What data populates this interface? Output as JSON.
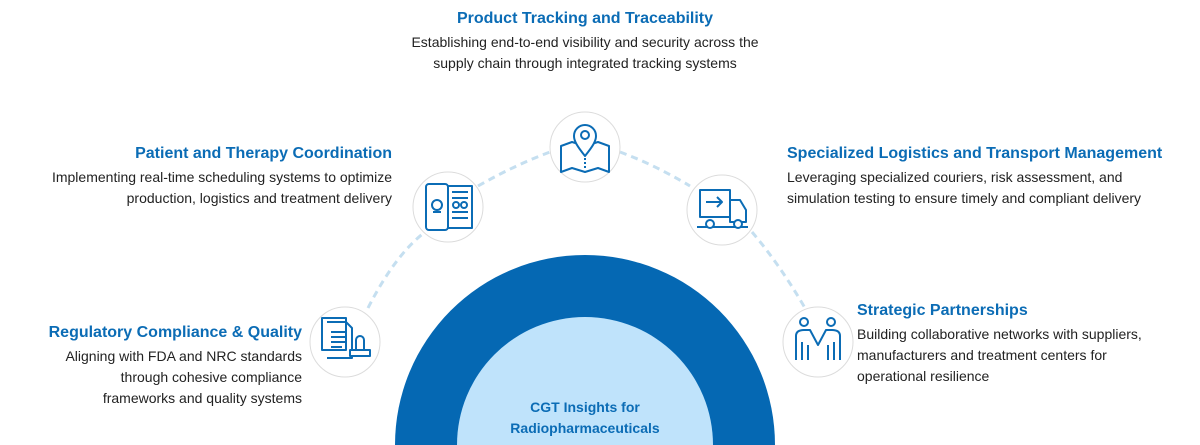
{
  "center": {
    "line1": "CGT Insights for",
    "line2": "Radiopharmaceuticals"
  },
  "colors": {
    "outer": "#0568b3",
    "inner": "#bfe3fb",
    "title": "#0b6cb5",
    "dash": "#c5dff0"
  },
  "items": [
    {
      "title": "Product Tracking and Traceability",
      "line1": "Establishing end-to-end visibility and security across the",
      "line2": "supply chain through integrated tracking systems",
      "icon": "map-pin-icon"
    },
    {
      "title": "Patient and Therapy Coordination",
      "line1": "Implementing real-time scheduling systems to optimize",
      "line2": "production, logistics and treatment delivery",
      "icon": "mobile-schedule-icon"
    },
    {
      "title": "Specialized Logistics and Transport Management",
      "line1": "Leveraging specialized couriers, risk assessment, and",
      "line2": "simulation testing to ensure timely and compliant delivery",
      "icon": "delivery-truck-icon"
    },
    {
      "title": "Regulatory Compliance & Quality",
      "line1": "Aligning with FDA and NRC standards",
      "line2": "through cohesive compliance",
      "line3": "frameworks and quality systems",
      "icon": "document-stamp-icon"
    },
    {
      "title": "Strategic Partnerships",
      "line1": "Building collaborative networks with suppliers,",
      "line2": "manufacturers and treatment centers for",
      "line3": "operational resilience",
      "icon": "handshake-people-icon"
    }
  ]
}
